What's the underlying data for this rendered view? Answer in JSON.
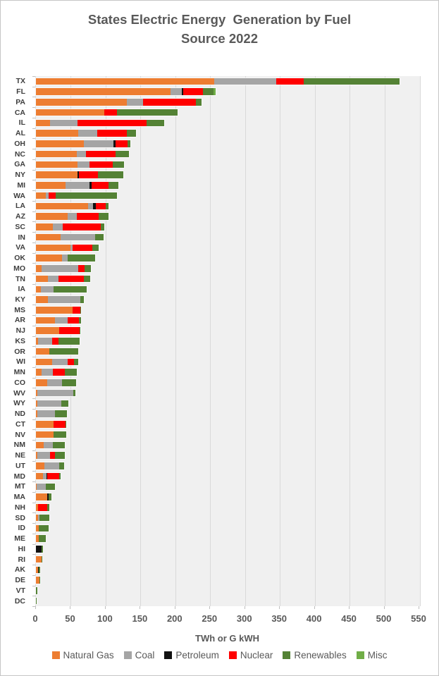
{
  "title": {
    "line1": "States Electric Energy  Generation by Fuel",
    "line2": "Source 2022"
  },
  "axis": {
    "x_label": "TWh or G kWH",
    "x_ticks": [
      0,
      50,
      100,
      150,
      200,
      250,
      300,
      350,
      400,
      450,
      500,
      550
    ]
  },
  "legend": [
    {
      "label": "Natural Gas",
      "color": "#ED7D31"
    },
    {
      "label": "Coal",
      "color": "#A5A5A5"
    },
    {
      "label": "Petroleum",
      "color": "#111111"
    },
    {
      "label": "Nuclear",
      "color": "#FF0000"
    },
    {
      "label": "Renewables",
      "color": "#548235"
    },
    {
      "label": "Misc",
      "color": "#70AD47"
    }
  ],
  "chart_data": {
    "type": "bar",
    "orientation": "horizontal",
    "stacked": true,
    "grid": true,
    "legend_position": "bottom",
    "title": "States Electric Energy  Generation by Fuel Source 2022",
    "xlabel": "TWh or G kWH",
    "xlim": [
      0,
      551
    ],
    "x_ticks": [
      0,
      50,
      100,
      150,
      200,
      250,
      300,
      350,
      400,
      450,
      500,
      550
    ],
    "series_names": [
      "Natural Gas",
      "Coal",
      "Petroleum",
      "Nuclear",
      "Renewables",
      "Misc"
    ],
    "series_colors": [
      "#ED7D31",
      "#A5A5A5",
      "#111111",
      "#FF0000",
      "#548235",
      "#70AD47"
    ],
    "values_note": "values[i] = TWh for series_names[i], estimated from bar lengths",
    "categories": [
      "TX",
      "FL",
      "PA",
      "CA",
      "IL",
      "AL",
      "OH",
      "NC",
      "GA",
      "NY",
      "MI",
      "WA",
      "LA",
      "AZ",
      "SC",
      "IN",
      "VA",
      "OK",
      "MO",
      "TN",
      "IA",
      "KY",
      "MS",
      "AR",
      "NJ",
      "KS",
      "OR",
      "WI",
      "MN",
      "CO",
      "WV",
      "WY",
      "ND",
      "CT",
      "NV",
      "NM",
      "NE",
      "UT",
      "MD",
      "MT",
      "MA",
      "NH",
      "SD",
      "ID",
      "ME",
      "HI",
      "RI",
      "AK",
      "DE",
      "VT",
      "DC"
    ],
    "rows": [
      {
        "state": "TX",
        "values": [
          256,
          89,
          0,
          39,
          138,
          0
        ]
      },
      {
        "state": "FL",
        "values": [
          193,
          16,
          2,
          29,
          14.5,
          3.5
        ]
      },
      {
        "state": "PA",
        "values": [
          130,
          23.5,
          0,
          76,
          8.5,
          0
        ]
      },
      {
        "state": "CA",
        "values": [
          98,
          0,
          0,
          18,
          87.5,
          0
        ]
      },
      {
        "state": "IL",
        "values": [
          20,
          39.5,
          0,
          99,
          25.5,
          0
        ]
      },
      {
        "state": "AL",
        "values": [
          61,
          27,
          0,
          42,
          14,
          0
        ]
      },
      {
        "state": "OH",
        "values": [
          68.5,
          43,
          2.5,
          17,
          5,
          0
        ]
      },
      {
        "state": "NC",
        "values": [
          58.5,
          13,
          0,
          43,
          19,
          0
        ]
      },
      {
        "state": "GA",
        "values": [
          60,
          17,
          0,
          33.5,
          16,
          0
        ]
      },
      {
        "state": "NY",
        "values": [
          60,
          0,
          2,
          27,
          36,
          0
        ]
      },
      {
        "state": "MI",
        "values": [
          42,
          35,
          2.5,
          24.5,
          14,
          0
        ]
      },
      {
        "state": "WA",
        "values": [
          14.5,
          4,
          0,
          9.5,
          88,
          0
        ]
      },
      {
        "state": "LA",
        "values": [
          75,
          6.5,
          4,
          15,
          4,
          0
        ]
      },
      {
        "state": "AZ",
        "values": [
          46,
          12.5,
          0,
          32,
          14,
          0
        ]
      },
      {
        "state": "SC",
        "values": [
          24,
          14.5,
          0,
          54.5,
          5,
          0
        ]
      },
      {
        "state": "IN",
        "values": [
          35.5,
          49.5,
          0,
          0,
          12,
          0
        ]
      },
      {
        "state": "VA",
        "values": [
          50,
          3,
          0,
          27.5,
          10,
          0
        ]
      },
      {
        "state": "OK",
        "values": [
          37,
          8,
          0,
          0,
          39.5,
          0
        ]
      },
      {
        "state": "MO",
        "values": [
          8.5,
          52,
          0,
          9,
          9,
          0
        ]
      },
      {
        "state": "TN",
        "values": [
          17,
          15,
          0,
          37,
          8.5,
          0
        ]
      },
      {
        "state": "IA",
        "values": [
          7.5,
          18,
          0,
          0,
          47,
          0
        ]
      },
      {
        "state": "KY",
        "values": [
          17,
          47,
          0,
          0,
          5,
          0
        ]
      },
      {
        "state": "MS",
        "values": [
          53,
          0,
          0,
          10.5,
          1.5,
          0
        ]
      },
      {
        "state": "AR",
        "values": [
          27,
          19,
          0,
          15.5,
          3.5,
          0
        ]
      },
      {
        "state": "NJ",
        "values": [
          33.5,
          0,
          0,
          29,
          1.5,
          0
        ]
      },
      {
        "state": "KS",
        "values": [
          3.5,
          19.5,
          0,
          9.5,
          30.5,
          0
        ]
      },
      {
        "state": "OR",
        "values": [
          19,
          0,
          0,
          0,
          42,
          0
        ]
      },
      {
        "state": "WI",
        "values": [
          23.5,
          22,
          0,
          9.5,
          6,
          0
        ]
      },
      {
        "state": "MN",
        "values": [
          8,
          16,
          0,
          17.5,
          17,
          0
        ]
      },
      {
        "state": "CO",
        "values": [
          16,
          21,
          0,
          0,
          21,
          0
        ]
      },
      {
        "state": "WV",
        "values": [
          2,
          51.5,
          0,
          0,
          3,
          0
        ]
      },
      {
        "state": "WY",
        "values": [
          2,
          34.5,
          0,
          0,
          10,
          0
        ]
      },
      {
        "state": "ND",
        "values": [
          2,
          25,
          0,
          0,
          17.5,
          0
        ]
      },
      {
        "state": "CT",
        "values": [
          25,
          0,
          0,
          17,
          1.5,
          0
        ]
      },
      {
        "state": "NV",
        "values": [
          25.5,
          0,
          0,
          0,
          17.7,
          0
        ]
      },
      {
        "state": "NM",
        "values": [
          11.5,
          13,
          0,
          0,
          17,
          0
        ]
      },
      {
        "state": "NE",
        "values": [
          2.5,
          18,
          0,
          6.5,
          14,
          0
        ]
      },
      {
        "state": "UT",
        "values": [
          11.8,
          22,
          0,
          0,
          6.7,
          0
        ]
      },
      {
        "state": "MD",
        "values": [
          10,
          5.5,
          1,
          17,
          2,
          0
        ]
      },
      {
        "state": "MT",
        "values": [
          1,
          13.5,
          0,
          0,
          13,
          0
        ]
      },
      {
        "state": "MA",
        "values": [
          16.5,
          0,
          2,
          0,
          4,
          0
        ]
      },
      {
        "state": "NH",
        "values": [
          3.5,
          0,
          0,
          12.5,
          3.5,
          0
        ]
      },
      {
        "state": "SD",
        "values": [
          3,
          2,
          0,
          0,
          14,
          0
        ]
      },
      {
        "state": "ID",
        "values": [
          4.3,
          0,
          0,
          0,
          13.5,
          0
        ]
      },
      {
        "state": "ME",
        "values": [
          4.3,
          0,
          0,
          0,
          9.8,
          0
        ]
      },
      {
        "state": "HI",
        "values": [
          0,
          0,
          8,
          0,
          2.3,
          0
        ]
      },
      {
        "state": "RI",
        "values": [
          8,
          0,
          0,
          0,
          0.3,
          0
        ]
      },
      {
        "state": "AK",
        "values": [
          3.5,
          0,
          1,
          0,
          2,
          0
        ]
      },
      {
        "state": "DE",
        "values": [
          5.3,
          0,
          0,
          0,
          0.3,
          0
        ]
      },
      {
        "state": "VT",
        "values": [
          0,
          0,
          0,
          0,
          2.3,
          0
        ]
      },
      {
        "state": "DC",
        "values": [
          0.2,
          0,
          0,
          0,
          0.1,
          0
        ]
      }
    ]
  }
}
